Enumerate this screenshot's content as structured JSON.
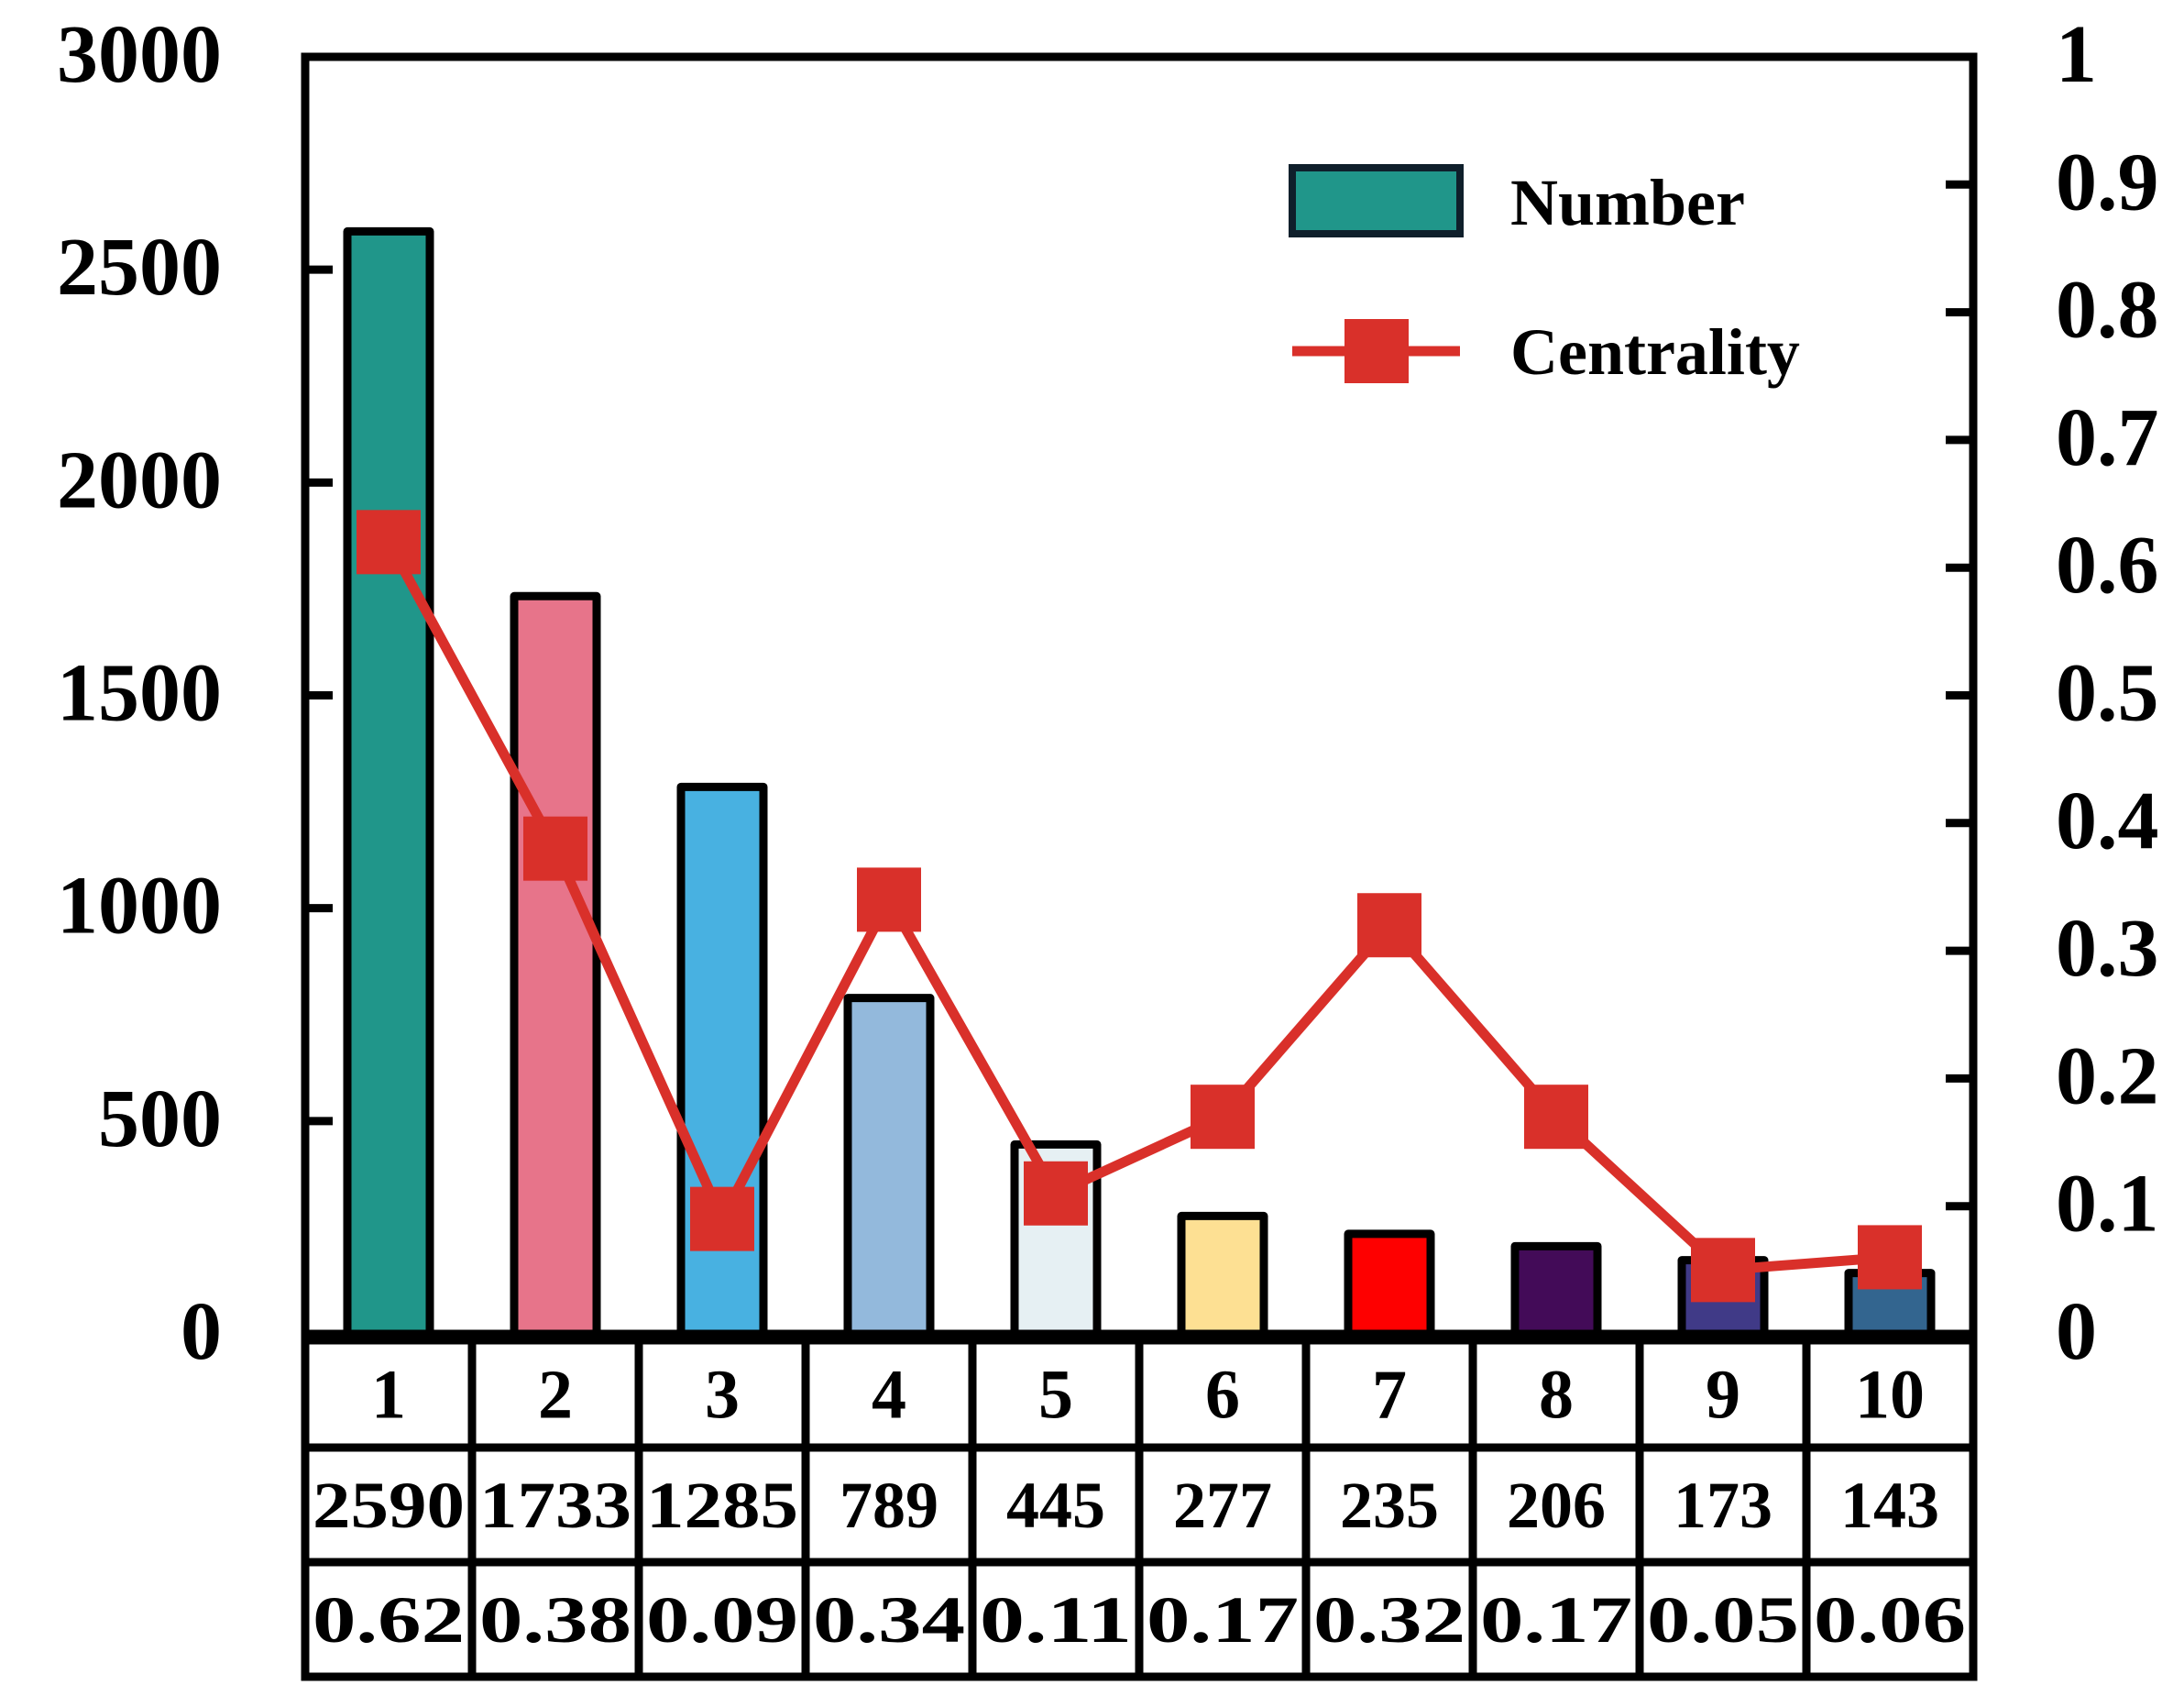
{
  "chart_data": {
    "type": "bar",
    "title": "",
    "xlabel": "",
    "ylabel": "",
    "categories": [
      "1",
      "2",
      "3",
      "4",
      "5",
      "6",
      "7",
      "8",
      "9",
      "10"
    ],
    "series": [
      {
        "name": "Number",
        "kind": "bar",
        "axis": "left",
        "values": [
          2590,
          1733,
          1285,
          789,
          445,
          277,
          235,
          206,
          173,
          143
        ],
        "colors": [
          "#20968a",
          "#e7748a",
          "#48b1e1",
          "#93b9dc",
          "#e6f0f3",
          "#fde093",
          "#fe0000",
          "#430b58",
          "#403a87",
          "#33658f"
        ]
      },
      {
        "name": "Centrality",
        "kind": "line",
        "axis": "right",
        "color": "#d9302a",
        "values": [
          0.62,
          0.38,
          0.09,
          0.34,
          0.11,
          0.17,
          0.32,
          0.17,
          0.05,
          0.06
        ]
      }
    ],
    "y_left": {
      "range": [
        0,
        3000
      ],
      "ticks": [
        0,
        500,
        1000,
        1500,
        2000,
        2500,
        3000
      ],
      "tick_labels": [
        "0",
        "500",
        "1000",
        "1500",
        "2000",
        "2500",
        "3000"
      ]
    },
    "y_right": {
      "range": [
        0,
        1
      ],
      "ticks": [
        0,
        0.1,
        0.2,
        0.3,
        0.4,
        0.5,
        0.6,
        0.7,
        0.8,
        0.9,
        1
      ],
      "tick_labels": [
        "0",
        "0.1",
        "0.2",
        "0.3",
        "0.4",
        "0.5",
        "0.6",
        "0.7",
        "0.8",
        "0.9",
        "1"
      ]
    },
    "legend": {
      "position": "top-right",
      "entries": [
        "Number",
        "Centrality"
      ]
    },
    "table": {
      "rows": [
        [
          "1",
          "2",
          "3",
          "4",
          "5",
          "6",
          "7",
          "8",
          "9",
          "10"
        ],
        [
          "2590",
          "1733",
          "1285",
          "789",
          "445",
          "277",
          "235",
          "206",
          "173",
          "143"
        ],
        [
          "0.62",
          "0.38",
          "0.09",
          "0.34",
          "0.11",
          "0.17",
          "0.32",
          "0.17",
          "0.05",
          "0.06"
        ]
      ]
    },
    "grid": false
  }
}
